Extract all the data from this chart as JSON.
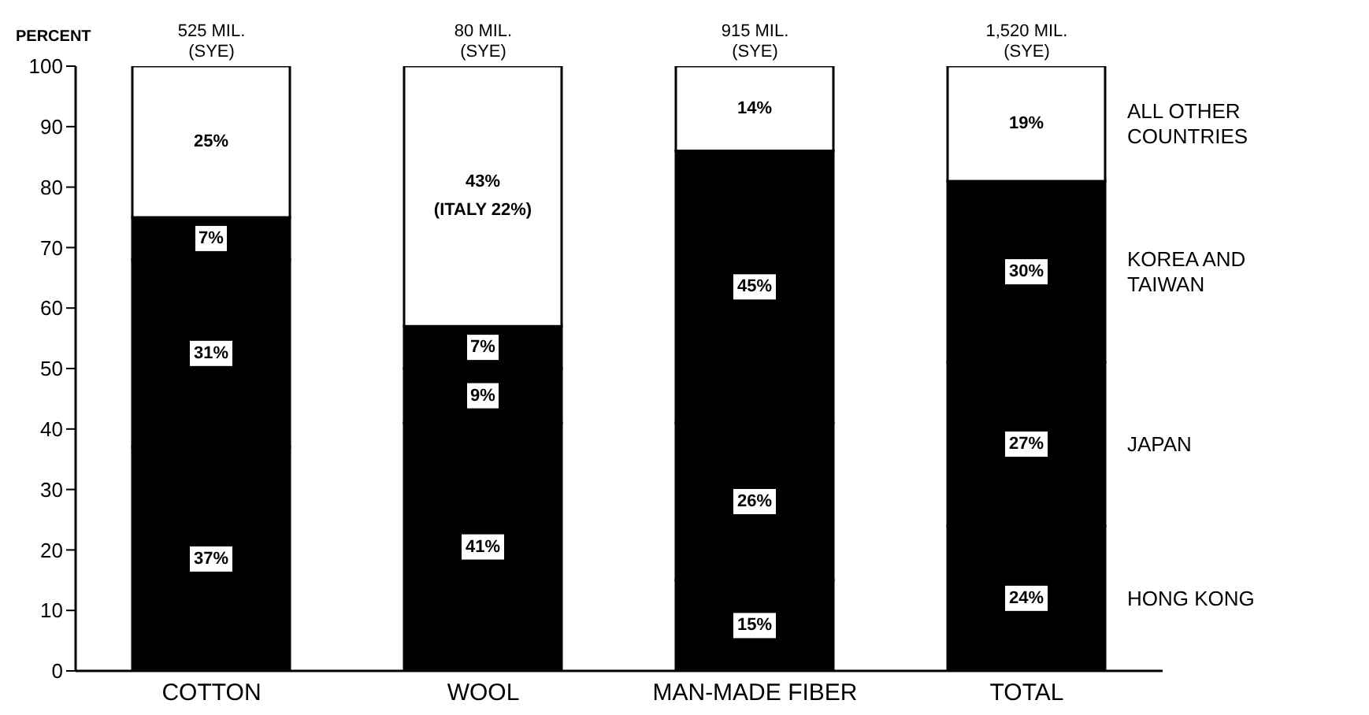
{
  "chart_data": {
    "type": "bar",
    "stacked": true,
    "ylabel": "PERCENT",
    "categories": [
      "COTTON",
      "WOOL",
      "MAN-MADE FIBER",
      "TOTAL"
    ],
    "ylim": [
      0,
      100
    ],
    "yticks": [
      0,
      10,
      20,
      30,
      40,
      50,
      60,
      70,
      80,
      90,
      100
    ],
    "annotations": [
      {
        "text": "525 MIL.\n(SYE)",
        "x": "COTTON",
        "y": 100
      },
      {
        "text": "80 MIL.\n(SYE)",
        "x": "WOOL",
        "y": 100
      },
      {
        "text": "915 MIL.\n(SYE)",
        "x": "MAN-MADE FIBER",
        "y": 100
      },
      {
        "text": "1,520 MIL.\n(SYE)",
        "x": "TOTAL",
        "y": 100
      }
    ],
    "series": [
      {
        "name": "HONG KONG",
        "color": "#000000",
        "values": [
          37,
          41,
          15,
          24
        ],
        "value_labels": [
          "37%",
          "41%",
          "15%",
          "24%"
        ]
      },
      {
        "name": "JAPAN",
        "color": "#000000",
        "values": [
          31,
          9,
          26,
          27
        ],
        "value_labels": [
          "31%",
          "9%",
          "26%",
          "27%"
        ]
      },
      {
        "name": "KOREA AND TAIWAN",
        "color": "#000000",
        "values": [
          7,
          7,
          45,
          30
        ],
        "value_labels": [
          "7%",
          "7%",
          "45%",
          "30%"
        ]
      },
      {
        "name": "ALL OTHER COUNTRIES",
        "color": "#ffffff",
        "values": [
          25,
          43,
          14,
          19
        ],
        "value_labels": [
          "25%",
          "43%\n(ITALY 22%)",
          "14%",
          "19%"
        ]
      }
    ]
  }
}
